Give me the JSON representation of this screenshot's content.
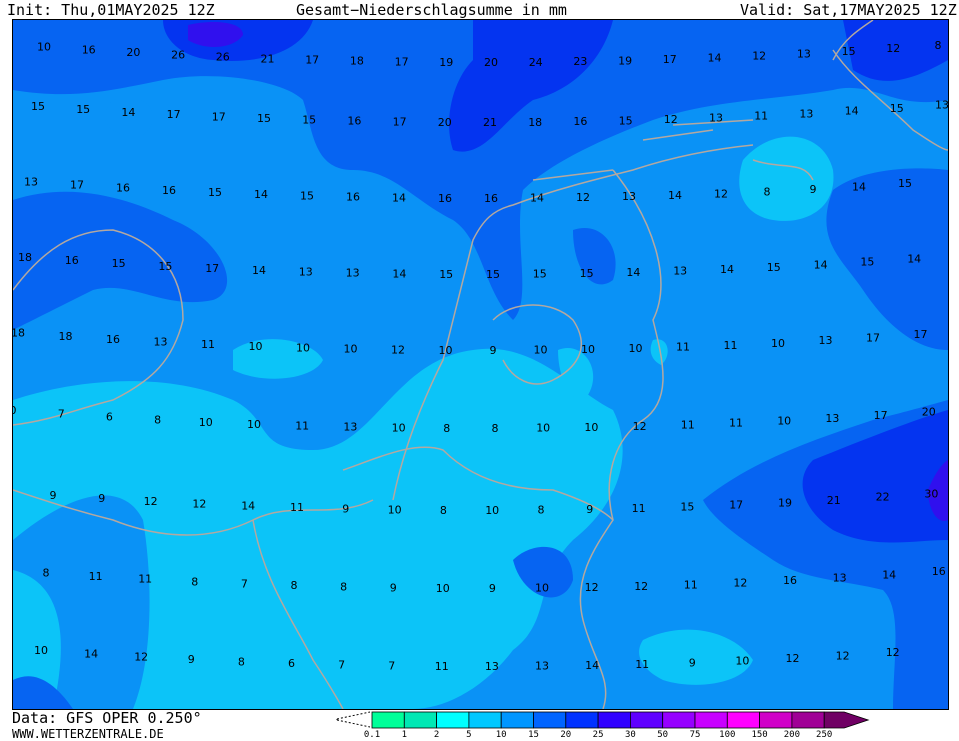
{
  "header": {
    "init": "Init: Thu,01MAY2025 12Z",
    "title": "Gesamt−Niederschlagsumme in mm",
    "valid": "Valid: Sat,17MAY2025 12Z"
  },
  "footer": {
    "data_source": "Data: GFS OPER 0.250°",
    "website": "WWW.WETTERZENTRALE.DE"
  },
  "legend": {
    "ticks": [
      "0.1",
      "1",
      "2",
      "5",
      "10",
      "15",
      "20",
      "25",
      "30",
      "50",
      "75",
      "100",
      "150",
      "200",
      "250"
    ],
    "colors": [
      "#00ff99",
      "#00e8b4",
      "#00ffff",
      "#00c8ff",
      "#0096ff",
      "#0064ff",
      "#0032ff",
      "#3000ff",
      "#6000ff",
      "#9600ff",
      "#c800ff",
      "#ff00ff",
      "#d000c8",
      "#a00096",
      "#700064"
    ]
  },
  "map": {
    "colors": {
      "c5": "#0cc4f8",
      "c10": "#0a92f6",
      "c15": "#0664f2",
      "c20": "#0434f0",
      "c25": "#3010ee",
      "coast": "#b4a8a0"
    },
    "value_rows": [
      [
        10,
        16,
        20,
        26,
        26,
        21,
        17,
        18,
        17,
        19,
        20,
        24,
        23,
        19,
        17,
        14,
        12,
        13,
        15,
        12,
        8
      ],
      [
        15,
        15,
        14,
        17,
        17,
        15,
        15,
        16,
        17,
        20,
        21,
        18,
        16,
        15,
        12,
        13,
        11,
        13,
        14,
        15,
        13
      ],
      [
        13,
        17,
        16,
        16,
        15,
        14,
        15,
        16,
        14,
        16,
        16,
        14,
        12,
        13,
        14,
        12,
        8,
        9,
        14,
        15
      ],
      [
        18,
        16,
        15,
        15,
        17,
        14,
        13,
        13,
        14,
        15,
        15,
        15,
        15,
        14,
        13,
        14,
        15,
        14,
        15,
        14
      ],
      [
        18,
        18,
        16,
        13,
        11,
        10,
        10,
        10,
        12,
        10,
        9,
        10,
        10,
        10,
        11,
        11,
        10,
        13,
        17,
        17
      ],
      [
        0,
        7,
        6,
        8,
        10,
        10,
        11,
        13,
        10,
        8,
        8,
        10,
        10,
        12,
        11,
        11,
        10,
        13,
        17,
        20
      ],
      [
        9,
        9,
        12,
        12,
        14,
        11,
        9,
        10,
        8,
        10,
        8,
        9,
        11,
        15,
        17,
        19,
        21,
        22,
        30
      ],
      [
        8,
        11,
        11,
        8,
        7,
        8,
        8,
        9,
        10,
        9,
        10,
        12,
        12,
        11,
        12,
        16,
        13,
        14,
        16
      ],
      [
        10,
        14,
        12,
        9,
        8,
        6,
        7,
        7,
        11,
        13,
        13,
        14,
        11,
        9,
        10,
        12,
        12,
        12
      ]
    ]
  }
}
